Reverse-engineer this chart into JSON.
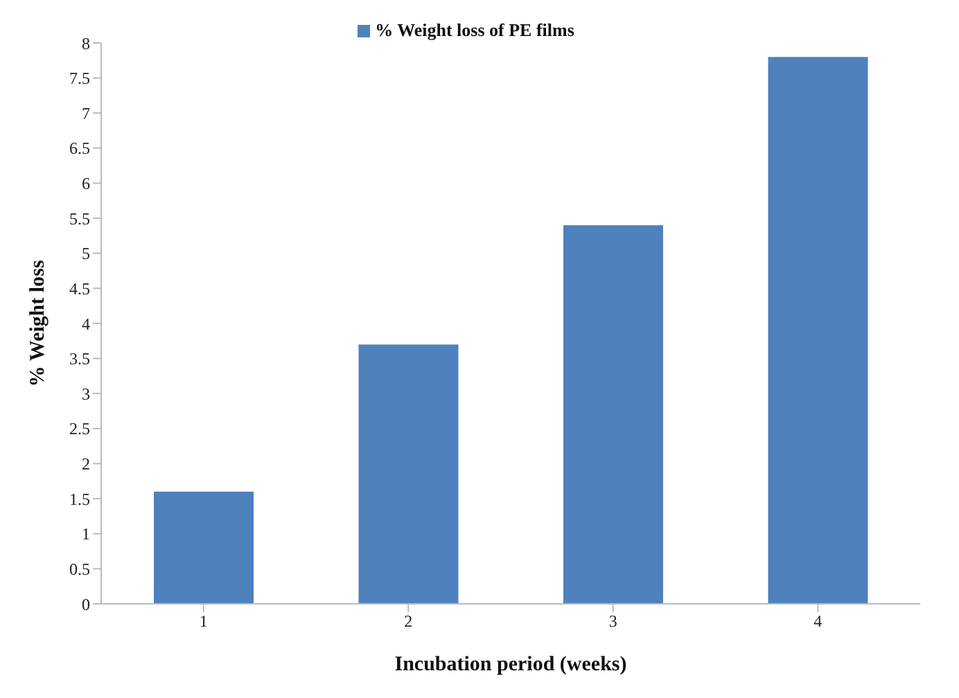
{
  "chart_data": {
    "type": "bar",
    "xlabel": "Incubation period (weeks)",
    "ylabel": "% Weight loss",
    "categories": [
      "1",
      "2",
      "3",
      "4"
    ],
    "series": [
      {
        "name": "% Weight loss of PE films",
        "color": "#4f81bd",
        "values": [
          1.6,
          3.7,
          5.4,
          7.8
        ]
      }
    ],
    "ylim": [
      0,
      8
    ],
    "yticks": [
      0,
      0.5,
      1,
      1.5,
      2,
      2.5,
      3,
      3.5,
      4,
      4.5,
      5,
      5.5,
      6,
      6.5,
      7,
      7.5,
      8
    ],
    "grid": false,
    "legend": "top"
  }
}
